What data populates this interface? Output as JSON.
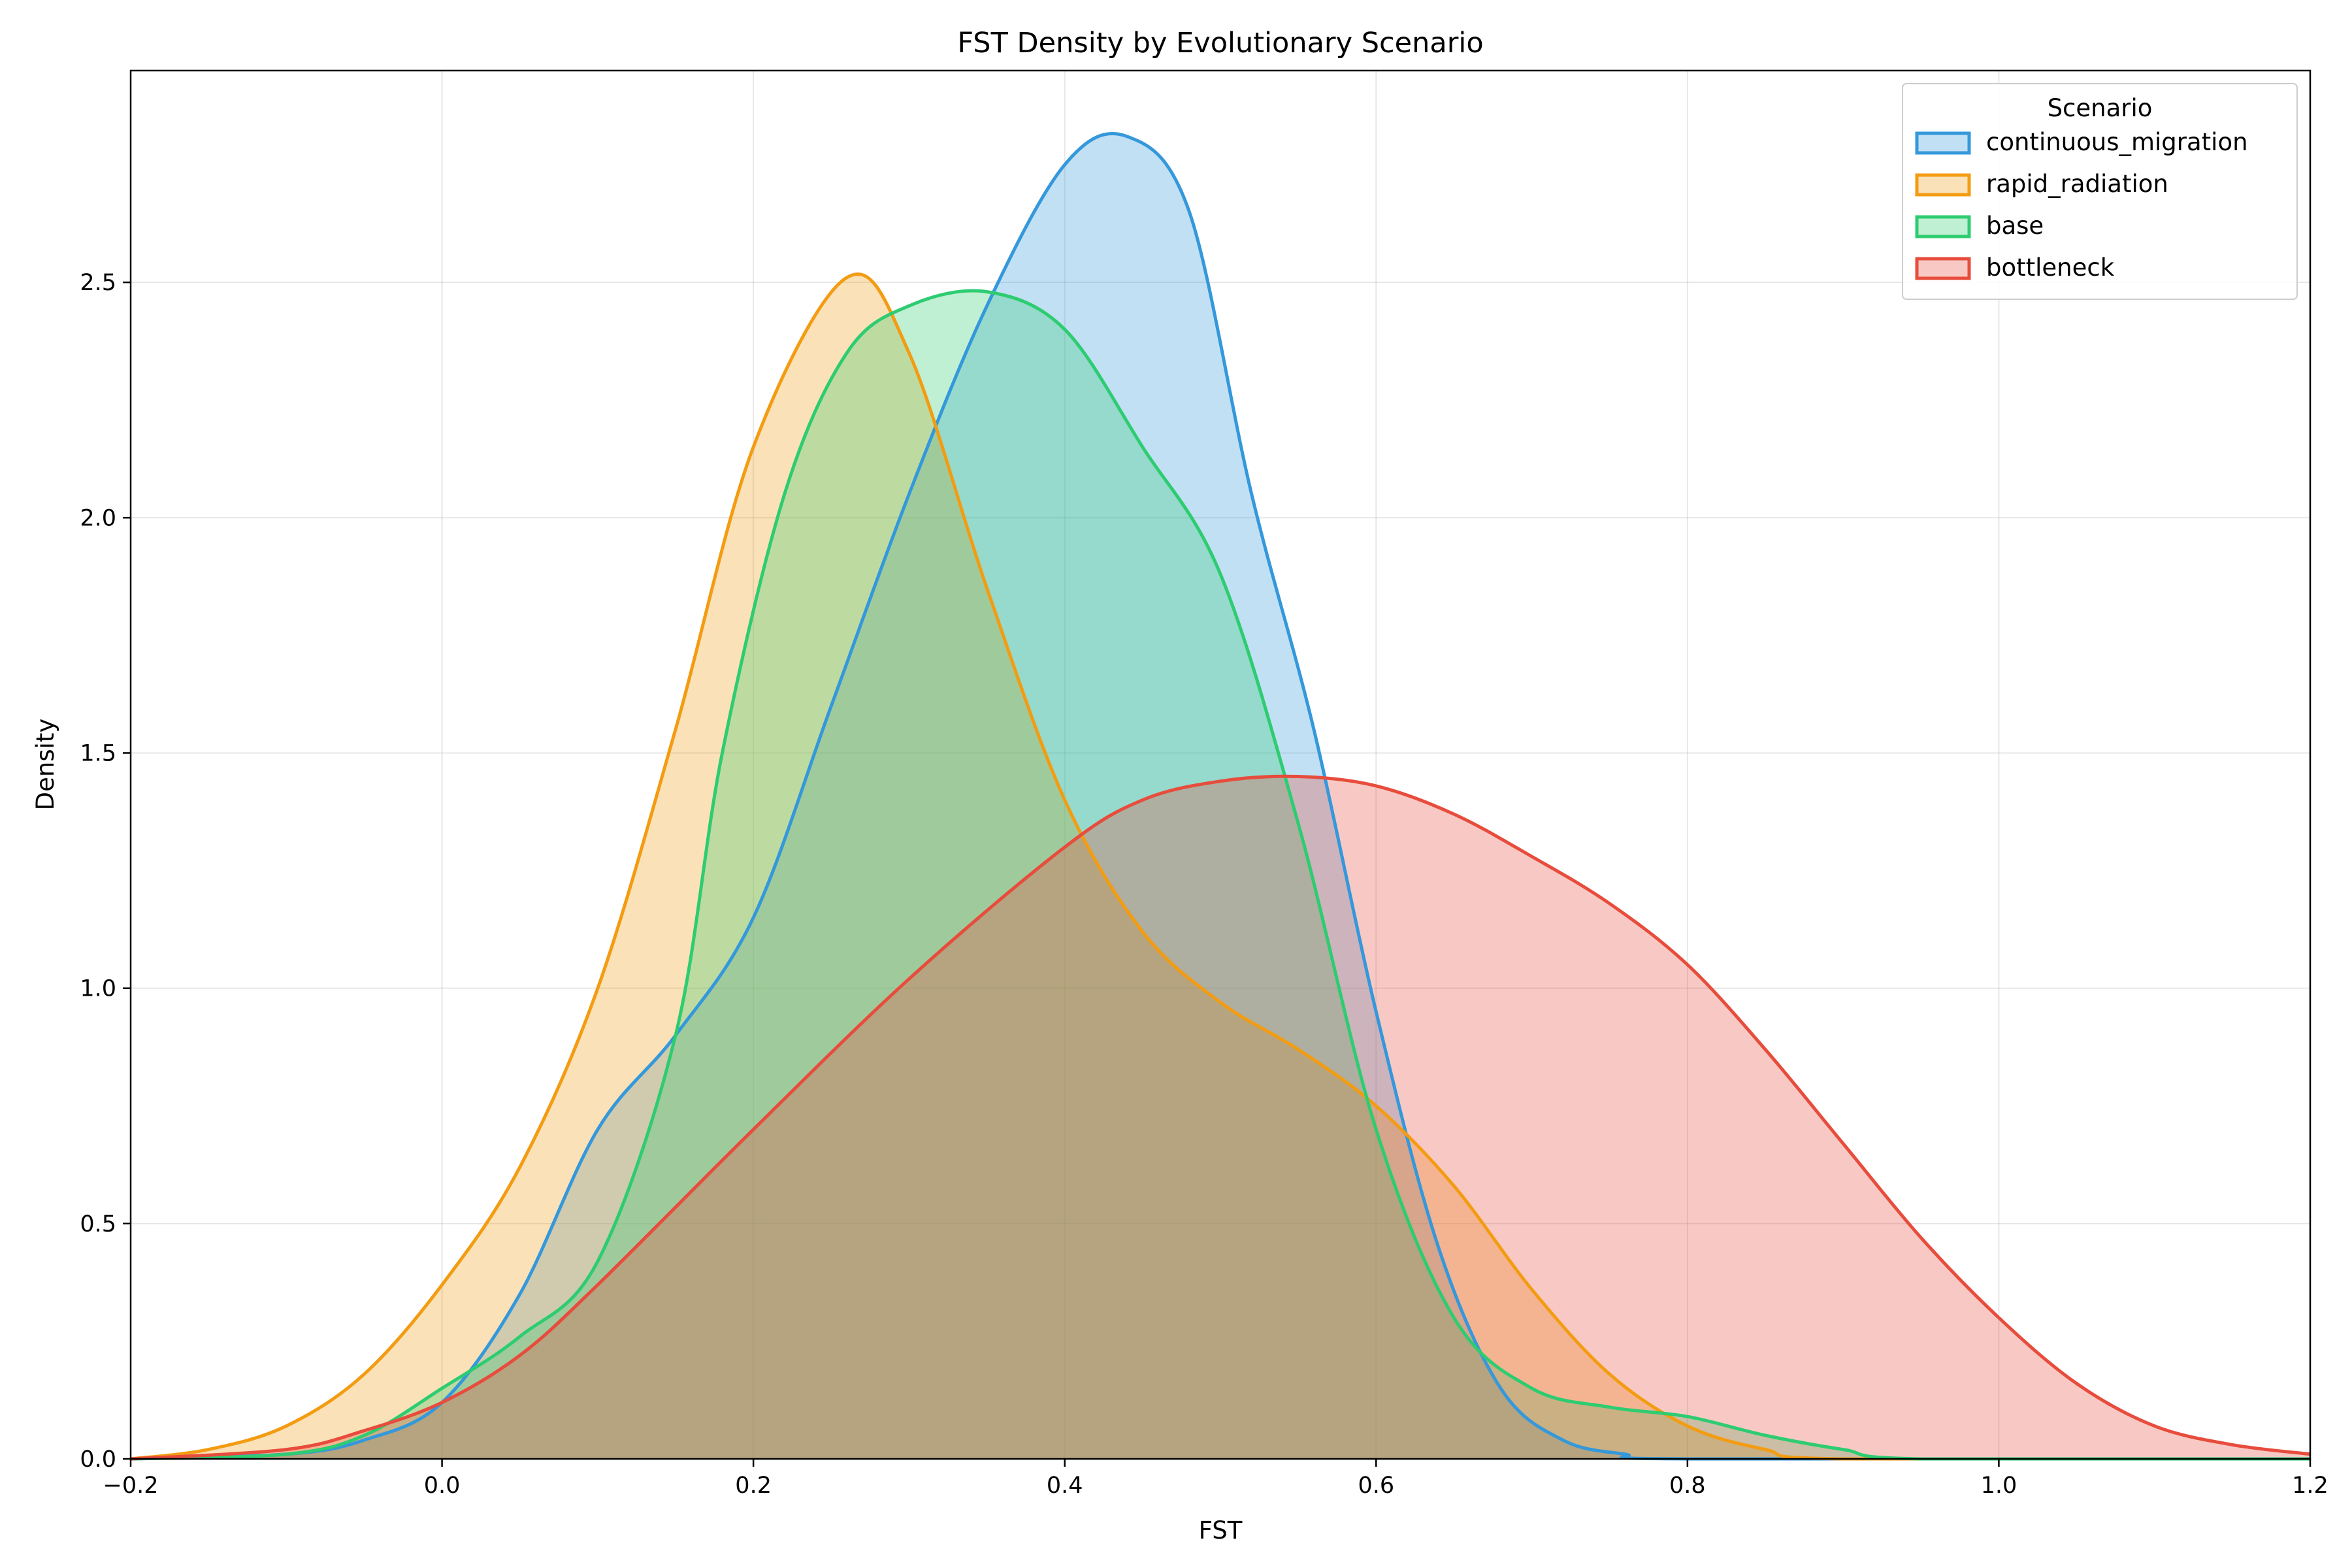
{
  "chart_data": {
    "type": "area",
    "title": "FST Density by Evolutionary Scenario",
    "xlabel": "FST",
    "ylabel": "Density",
    "xlim": [
      -0.2,
      1.2
    ],
    "ylim": [
      0,
      2.95
    ],
    "xticks": [
      -0.2,
      0.0,
      0.2,
      0.4,
      0.6,
      0.8,
      1.0,
      1.2
    ],
    "xtick_labels": [
      "−0.2",
      "0.0",
      "0.2",
      "0.4",
      "0.6",
      "0.8",
      "1.0",
      "1.2"
    ],
    "yticks": [
      0.0,
      0.5,
      1.0,
      1.5,
      2.0,
      2.5
    ],
    "ytick_labels": [
      "0.0",
      "0.5",
      "1.0",
      "1.5",
      "2.0",
      "2.5"
    ],
    "grid": true,
    "legend": {
      "title": "Scenario",
      "placement": "top-right"
    },
    "series": [
      {
        "name": "continuous_migration",
        "color": "#3498db",
        "x": [
          -0.2,
          -0.1,
          -0.05,
          0.0,
          0.05,
          0.1,
          0.15,
          0.2,
          0.25,
          0.3,
          0.35,
          0.4,
          0.44,
          0.48,
          0.52,
          0.56,
          0.6,
          0.64,
          0.68,
          0.72,
          0.76,
          0.8,
          1.2
        ],
        "y": [
          0.0,
          0.01,
          0.04,
          0.12,
          0.35,
          0.7,
          0.9,
          1.15,
          1.6,
          2.05,
          2.45,
          2.75,
          2.81,
          2.65,
          2.05,
          1.55,
          0.95,
          0.45,
          0.15,
          0.04,
          0.01,
          0.0,
          0.0
        ]
      },
      {
        "name": "rapid_radiation",
        "color": "#f39c12",
        "x": [
          -0.2,
          -0.15,
          -0.1,
          -0.05,
          0.0,
          0.05,
          0.1,
          0.15,
          0.2,
          0.26,
          0.3,
          0.35,
          0.4,
          0.45,
          0.5,
          0.55,
          0.6,
          0.65,
          0.7,
          0.75,
          0.8,
          0.85,
          0.9,
          1.2
        ],
        "y": [
          0.0,
          0.02,
          0.07,
          0.18,
          0.37,
          0.62,
          1.0,
          1.55,
          2.15,
          2.51,
          2.35,
          1.85,
          1.4,
          1.12,
          0.97,
          0.87,
          0.75,
          0.58,
          0.36,
          0.18,
          0.07,
          0.02,
          0.0,
          0.0
        ]
      },
      {
        "name": "base",
        "color": "#2ecc71",
        "x": [
          -0.2,
          -0.1,
          -0.05,
          0.0,
          0.05,
          0.1,
          0.15,
          0.18,
          0.22,
          0.26,
          0.3,
          0.35,
          0.4,
          0.45,
          0.5,
          0.55,
          0.6,
          0.65,
          0.7,
          0.75,
          0.8,
          0.85,
          0.9,
          0.95,
          1.2
        ],
        "y": [
          0.0,
          0.01,
          0.05,
          0.15,
          0.26,
          0.42,
          0.9,
          1.5,
          2.05,
          2.35,
          2.45,
          2.48,
          2.4,
          2.15,
          1.88,
          1.35,
          0.7,
          0.3,
          0.15,
          0.11,
          0.09,
          0.05,
          0.02,
          0.0,
          0.0
        ]
      },
      {
        "name": "bottleneck",
        "color": "#e74c3c",
        "x": [
          -0.2,
          -0.1,
          -0.05,
          0.0,
          0.05,
          0.1,
          0.2,
          0.3,
          0.4,
          0.45,
          0.5,
          0.55,
          0.6,
          0.65,
          0.7,
          0.75,
          0.8,
          0.85,
          0.9,
          0.95,
          1.0,
          1.05,
          1.1,
          1.15,
          1.2
        ],
        "y": [
          0.0,
          0.02,
          0.06,
          0.12,
          0.22,
          0.37,
          0.7,
          1.02,
          1.3,
          1.4,
          1.44,
          1.45,
          1.43,
          1.37,
          1.28,
          1.18,
          1.05,
          0.87,
          0.67,
          0.47,
          0.3,
          0.16,
          0.07,
          0.03,
          0.01
        ]
      }
    ]
  }
}
